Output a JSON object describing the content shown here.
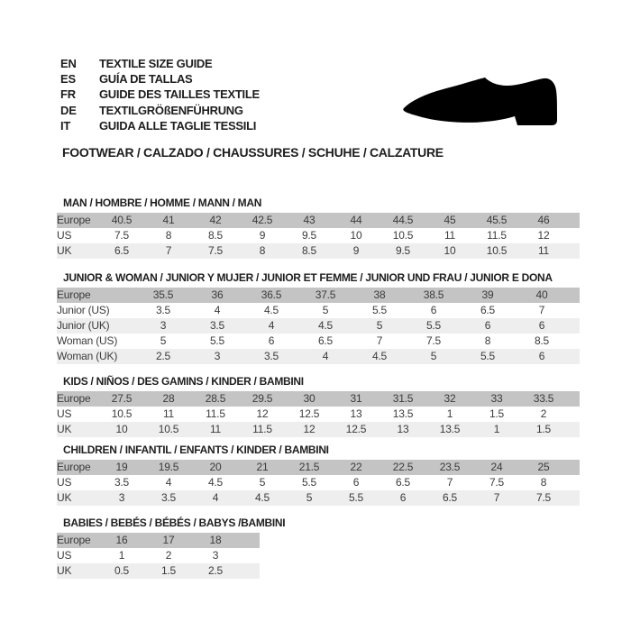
{
  "header": {
    "languages": [
      {
        "code": "EN",
        "label": "TEXTILE SIZE GUIDE"
      },
      {
        "code": "ES",
        "label": "GUÍA DE TALLAS"
      },
      {
        "code": "FR",
        "label": "GUIDE DES TAILLES TEXTILE"
      },
      {
        "code": "DE",
        "label": "TEXTILGRÖßENFÜHRUNG"
      },
      {
        "code": "IT",
        "label": "GUIDA ALLE TAGLIE TESSILI"
      }
    ],
    "category_line": "FOOTWEAR / CALZADO / CHAUSSURES / SCHUHE / CALZATURE",
    "shoe_icon": "dress-shoe-icon"
  },
  "colors": {
    "page_bg": "#ffffff",
    "europe_row_bg": "#c4c4c4",
    "alt_row_bg": "#eeeeee",
    "table_text": "#3b3b3b",
    "heading_text": "#1e1e1e",
    "shoe_fill": "#000000"
  },
  "tables": [
    {
      "id": "man",
      "title": "MAN / HOMBRE / HOMME / MANN / MAN",
      "rows": [
        {
          "label": "Europe",
          "values": [
            "40.5",
            "41",
            "42",
            "42.5",
            "43",
            "44",
            "44.5",
            "45",
            "45.5",
            "46"
          ]
        },
        {
          "label": "US",
          "values": [
            "7.5",
            "8",
            "8.5",
            "9",
            "9.5",
            "10",
            "10.5",
            "11",
            "11.5",
            "12"
          ]
        },
        {
          "label": "UK",
          "values": [
            "6.5",
            "7",
            "7.5",
            "8",
            "8.5",
            "9",
            "9.5",
            "10",
            "10.5",
            "11"
          ]
        }
      ]
    },
    {
      "id": "junior-woman",
      "title": "JUNIOR & WOMAN / JUNIOR Y MUJER / JUNIOR ET FEMME / JUNIOR UND FRAU / JUNIOR E DONA",
      "rows": [
        {
          "label": "Europe",
          "values": [
            "35.5",
            "36",
            "36.5",
            "37.5",
            "38",
            "38.5",
            "39",
            "40"
          ]
        },
        {
          "label": "Junior (US)",
          "values": [
            "3.5",
            "4",
            "4.5",
            "5",
            "5.5",
            "6",
            "6.5",
            "7"
          ]
        },
        {
          "label": "Junior (UK)",
          "values": [
            "3",
            "3.5",
            "4",
            "4.5",
            "5",
            "5.5",
            "6",
            "6"
          ]
        },
        {
          "label": "Woman (US)",
          "values": [
            "5",
            "5.5",
            "6",
            "6.5",
            "7",
            "7.5",
            "8",
            "8.5"
          ]
        },
        {
          "label": "Woman (UK)",
          "values": [
            "2.5",
            "3",
            "3.5",
            "4",
            "4.5",
            "5",
            "5.5",
            "6"
          ]
        }
      ]
    },
    {
      "id": "kids",
      "title": "KIDS / NIÑOS / DES GAMINS / KINDER / BAMBINI",
      "rows": [
        {
          "label": "Europe",
          "values": [
            "27.5",
            "28",
            "28.5",
            "29.5",
            "30",
            "31",
            "31.5",
            "32",
            "33",
            "33.5"
          ]
        },
        {
          "label": "US",
          "values": [
            "10.5",
            "11",
            "11.5",
            "12",
            "12.5",
            "13",
            "13.5",
            "1",
            "1.5",
            "2"
          ]
        },
        {
          "label": "UK",
          "values": [
            "10",
            "10.5",
            "11",
            "11.5",
            "12",
            "12.5",
            "13",
            "13.5",
            "1",
            "1.5"
          ]
        }
      ]
    },
    {
      "id": "children",
      "title": "CHILDREN / INFANTIL / ENFANTS / KINDER / BAMBINI",
      "rows": [
        {
          "label": "Europe",
          "values": [
            "19",
            "19.5",
            "20",
            "21",
            "21.5",
            "22",
            "22.5",
            "23.5",
            "24",
            "25"
          ]
        },
        {
          "label": "US",
          "values": [
            "3.5",
            "4",
            "4.5",
            "5",
            "5.5",
            "6",
            "6.5",
            "7",
            "7.5",
            "8"
          ]
        },
        {
          "label": "UK",
          "values": [
            "3",
            "3.5",
            "4",
            "4.5",
            "5",
            "5.5",
            "6",
            "6.5",
            "7",
            "7.5"
          ]
        }
      ]
    },
    {
      "id": "babies",
      "title": "BABIES / BEBÉS / BÉBÉS / BABYS /BAMBINI",
      "rows": [
        {
          "label": "Europe",
          "values": [
            "16",
            "17",
            "18"
          ]
        },
        {
          "label": "US",
          "values": [
            "1",
            "2",
            "3"
          ]
        },
        {
          "label": "UK",
          "values": [
            "0.5",
            "1.5",
            "2.5"
          ]
        }
      ]
    }
  ]
}
